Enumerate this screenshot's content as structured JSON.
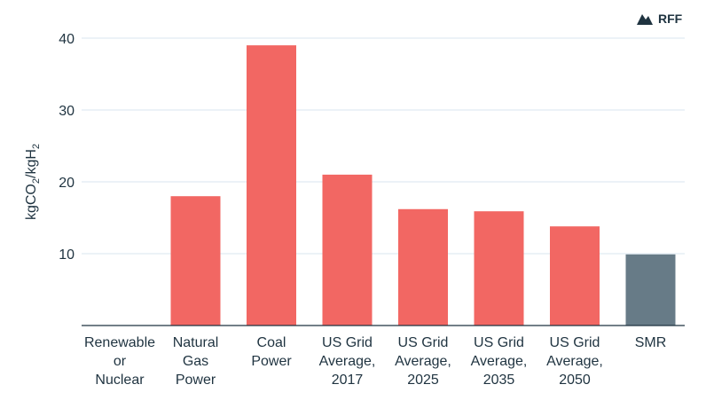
{
  "brand": {
    "name": "RFF"
  },
  "chart_data": {
    "type": "bar",
    "ylabel": "kgCO2/kgH2",
    "ylim": [
      0,
      40
    ],
    "yticks": [
      10,
      20,
      30,
      40
    ],
    "grid": true,
    "categories": [
      [
        "Renewable",
        "or",
        "Nuclear"
      ],
      [
        "Natural",
        "Gas",
        "Power"
      ],
      [
        "Coal",
        "Power"
      ],
      [
        "US Grid",
        "Average,",
        "2017"
      ],
      [
        "US Grid",
        "Average,",
        "2025"
      ],
      [
        "US Grid",
        "Average,",
        "2035"
      ],
      [
        "US Grid",
        "Average,",
        "2050"
      ],
      [
        "SMR"
      ]
    ],
    "values": [
      0,
      18,
      39,
      21,
      16.2,
      15.9,
      13.8,
      9.9
    ],
    "colors": [
      "#f26763",
      "#f26763",
      "#f26763",
      "#f26763",
      "#f26763",
      "#f26763",
      "#f26763",
      "#677b87"
    ]
  }
}
